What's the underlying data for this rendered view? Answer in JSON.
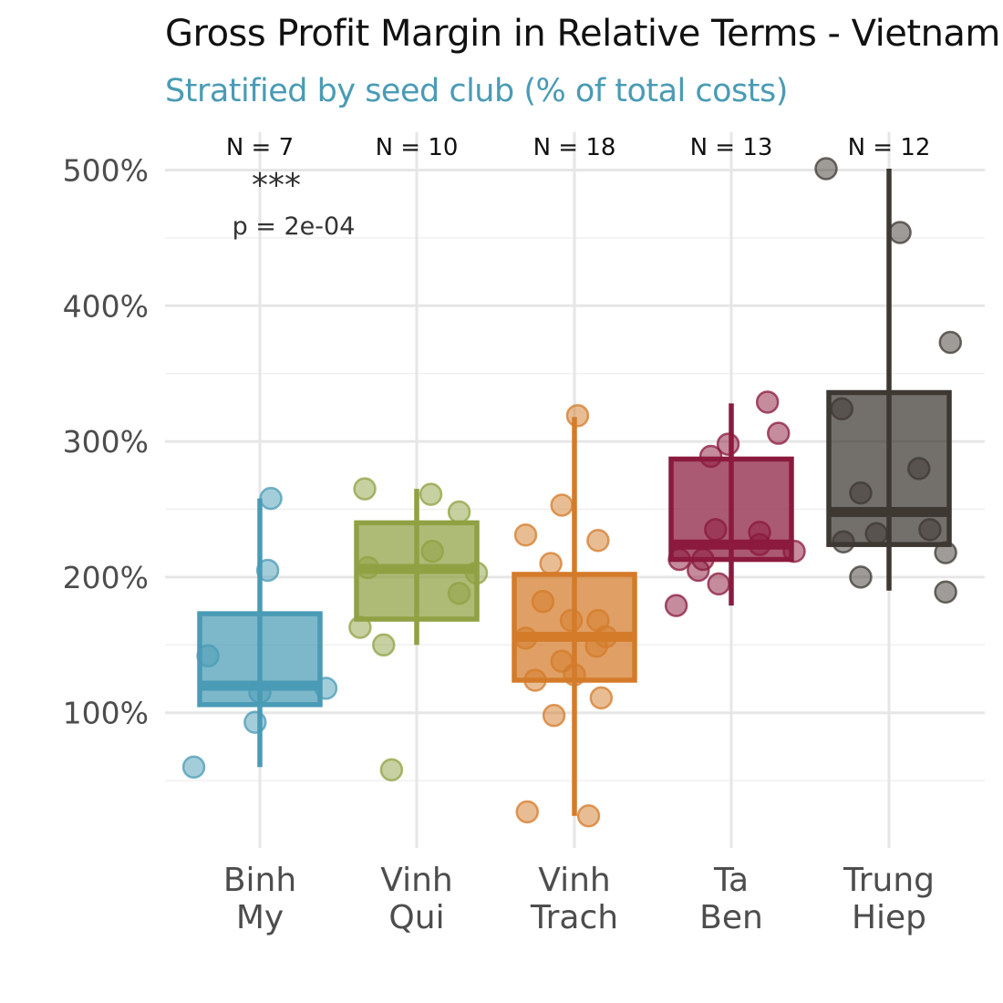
{
  "chart_data": {
    "type": "box",
    "title": "Gross Profit Margin in Relative Terms - Vietnam",
    "subtitle": "Stratified by seed club (% of total costs)",
    "xlabel": "",
    "ylabel": "",
    "ylim": [
      0,
      525
    ],
    "y_ticks": [
      100,
      200,
      300,
      400,
      500
    ],
    "y_tick_labels": [
      "100%",
      "200%",
      "300%",
      "400%",
      "500%"
    ],
    "y_minor_ticks": [
      50,
      150,
      250,
      350,
      450
    ],
    "grid": true,
    "categories": [
      {
        "name": "Binh My",
        "label_lines": [
          "Binh",
          "My"
        ],
        "n_label": "N = 7",
        "color": "#4a9bb5",
        "box": {
          "whisker_low": 60,
          "q1": 106,
          "median": 120,
          "q3": 173,
          "whisker_high": 258
        },
        "points": [
          {
            "x": -0.42,
            "y": 60
          },
          {
            "x": -0.03,
            "y": 93
          },
          {
            "x": 0.0,
            "y": 115
          },
          {
            "x": 0.42,
            "y": 118
          },
          {
            "x": -0.33,
            "y": 142
          },
          {
            "x": 0.05,
            "y": 205
          },
          {
            "x": 0.07,
            "y": 258
          }
        ]
      },
      {
        "name": "Vinh Qui",
        "label_lines": [
          "Vinh",
          "Qui"
        ],
        "n_label": "N = 10",
        "color": "#8fa142",
        "box": {
          "whisker_low": 150,
          "q1": 169,
          "median": 206,
          "q3": 240,
          "whisker_high": 265
        },
        "points": [
          {
            "x": -0.16,
            "y": 58
          },
          {
            "x": -0.21,
            "y": 150
          },
          {
            "x": -0.36,
            "y": 163
          },
          {
            "x": -0.31,
            "y": 207
          },
          {
            "x": 0.1,
            "y": 219
          },
          {
            "x": 0.27,
            "y": 248
          },
          {
            "x": 0.09,
            "y": 261
          },
          {
            "x": -0.33,
            "y": 265
          },
          {
            "x": 0.38,
            "y": 203
          },
          {
            "x": 0.27,
            "y": 188
          }
        ]
      },
      {
        "name": "Vinh Trach",
        "label_lines": [
          "Vinh",
          "Trach"
        ],
        "n_label": "N = 18",
        "color": "#d47b2a",
        "box": {
          "whisker_low": 24,
          "q1": 124,
          "median": 156,
          "q3": 202,
          "whisker_high": 318
        },
        "points": [
          {
            "x": -0.3,
            "y": 27
          },
          {
            "x": 0.09,
            "y": 24
          },
          {
            "x": -0.13,
            "y": 98
          },
          {
            "x": 0.17,
            "y": 111
          },
          {
            "x": -0.25,
            "y": 124
          },
          {
            "x": 0.0,
            "y": 128
          },
          {
            "x": -0.08,
            "y": 138
          },
          {
            "x": 0.14,
            "y": 149
          },
          {
            "x": -0.31,
            "y": 155
          },
          {
            "x": 0.2,
            "y": 156
          },
          {
            "x": -0.02,
            "y": 168
          },
          {
            "x": 0.15,
            "y": 168
          },
          {
            "x": -0.2,
            "y": 182
          },
          {
            "x": -0.15,
            "y": 210
          },
          {
            "x": 0.15,
            "y": 227
          },
          {
            "x": -0.31,
            "y": 231
          },
          {
            "x": -0.08,
            "y": 253
          },
          {
            "x": 0.02,
            "y": 319
          }
        ]
      },
      {
        "name": "Ta Ben",
        "label_lines": [
          "Ta",
          "Ben"
        ],
        "n_label": "N = 13",
        "color": "#8b1a3e",
        "box": {
          "whisker_low": 179,
          "q1": 213,
          "median": 224,
          "q3": 287,
          "whisker_high": 328
        },
        "points": [
          {
            "x": -0.35,
            "y": 179
          },
          {
            "x": -0.08,
            "y": 195
          },
          {
            "x": -0.21,
            "y": 205
          },
          {
            "x": -0.33,
            "y": 213
          },
          {
            "x": -0.18,
            "y": 213
          },
          {
            "x": 0.18,
            "y": 224
          },
          {
            "x": 0.4,
            "y": 219
          },
          {
            "x": 0.18,
            "y": 233
          },
          {
            "x": -0.1,
            "y": 235
          },
          {
            "x": -0.13,
            "y": 289
          },
          {
            "x": -0.02,
            "y": 298
          },
          {
            "x": 0.3,
            "y": 306
          },
          {
            "x": 0.23,
            "y": 329
          }
        ]
      },
      {
        "name": "Trung Hiep",
        "label_lines": [
          "Trung",
          "Hiep"
        ],
        "n_label": "N = 12",
        "color": "#3d3832",
        "box": {
          "whisker_low": 190,
          "q1": 224,
          "median": 248,
          "q3": 336,
          "whisker_high": 501
        },
        "points": [
          {
            "x": -0.4,
            "y": 501
          },
          {
            "x": 0.07,
            "y": 454
          },
          {
            "x": 0.39,
            "y": 373
          },
          {
            "x": -0.3,
            "y": 324
          },
          {
            "x": 0.19,
            "y": 280
          },
          {
            "x": -0.18,
            "y": 262
          },
          {
            "x": -0.08,
            "y": 232
          },
          {
            "x": 0.26,
            "y": 235
          },
          {
            "x": -0.29,
            "y": 226
          },
          {
            "x": 0.36,
            "y": 218
          },
          {
            "x": -0.18,
            "y": 200
          },
          {
            "x": 0.36,
            "y": 189
          }
        ]
      }
    ],
    "annotations": [
      {
        "category": 0,
        "stars": "***",
        "text": "p = 2e-04"
      }
    ]
  }
}
